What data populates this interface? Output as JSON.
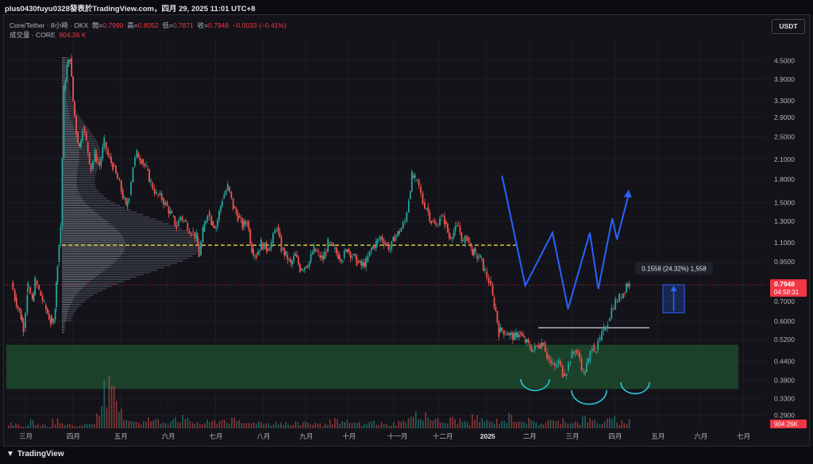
{
  "header": {
    "publisher": "plus0430fuyu0328發表於TradingView.com，四月 29, 2025 11:01 UTC+8"
  },
  "legend": {
    "symbol": "Core/Tether · 8小時 · OKX",
    "open_label": "開=",
    "open": "0.7990",
    "high_label": "高=",
    "high": "0.8052",
    "low_label": "低=",
    "low": "0.7871",
    "close_label": "收=",
    "close": "0.7948",
    "change": "−0.0033 (−0.41%)",
    "volume_label": "成交量 · CORE",
    "volume": "904.26 K"
  },
  "currency_button": "USDT",
  "footer": {
    "brand": "TradingView"
  },
  "colors": {
    "bull": "#26a69a",
    "bear": "#ef5350",
    "accent_blue": "#2962ff",
    "poc_line": "#ffeb3b",
    "support_zone": "#1e4a2e",
    "price_badge": "#f23645"
  },
  "chart_data": {
    "type": "candlestick",
    "scale": "log",
    "y_ticks": [
      "4.5000",
      "3.9000",
      "3.3000",
      "2.9000",
      "2.5000",
      "2.1000",
      "1.8000",
      "1.5000",
      "1.3000",
      "1.1000",
      "0.9500",
      "0.7000",
      "0.6000",
      "0.5200",
      "0.4400",
      "0.3800",
      "0.3300",
      "0.2900"
    ],
    "x_ticks": [
      "三月",
      "四月",
      "五月",
      "六月",
      "七月",
      "八月",
      "九月",
      "十月",
      "十一月",
      "十二月",
      "2025",
      "二月",
      "三月",
      "四月",
      "五月",
      "六月",
      "七月"
    ],
    "ylim": [
      0.27,
      5.0
    ],
    "last_price": "0.7948",
    "countdown": "04:58:31",
    "volume_badge": "904.26K",
    "measure_label": "0.1558 (24.32%) 1,558",
    "price_path": [
      [
        0.8,
        0.81
      ],
      [
        1.3,
        0.72
      ],
      [
        2.1,
        0.62
      ],
      [
        2.4,
        0.57
      ],
      [
        2.9,
        0.75
      ],
      [
        3.0,
        0.78
      ],
      [
        3.55,
        0.7
      ],
      [
        3.9,
        0.82
      ],
      [
        4.4,
        0.76
      ],
      [
        5.1,
        0.68
      ],
      [
        5.9,
        0.6
      ],
      [
        6.1,
        0.59
      ],
      [
        6.5,
        0.67
      ],
      [
        6.8,
        0.95
      ],
      [
        7.2,
        1.25
      ],
      [
        7.6,
        3.6
      ],
      [
        8.0,
        4.3
      ],
      [
        8.4,
        4.6
      ],
      [
        8.8,
        3.3
      ],
      [
        9.2,
        2.6
      ],
      [
        9.6,
        2.3
      ],
      [
        10.0,
        2.7
      ],
      [
        10.5,
        2.4
      ],
      [
        11.1,
        1.95
      ],
      [
        11.6,
        2.2
      ],
      [
        12.2,
        2.0
      ],
      [
        12.8,
        2.4
      ],
      [
        13.3,
        2.15
      ],
      [
        13.9,
        2.0
      ],
      [
        14.5,
        1.8
      ],
      [
        15.0,
        1.65
      ],
      [
        15.6,
        1.45
      ],
      [
        16.0,
        1.6
      ],
      [
        16.5,
        2.0
      ],
      [
        17.0,
        2.2
      ],
      [
        17.6,
        2.1
      ],
      [
        18.2,
        1.95
      ],
      [
        18.8,
        1.75
      ],
      [
        19.5,
        1.6
      ],
      [
        20.2,
        1.55
      ],
      [
        20.9,
        1.45
      ],
      [
        21.5,
        1.35
      ],
      [
        22.1,
        1.25
      ],
      [
        22.6,
        1.35
      ],
      [
        23.3,
        1.28
      ],
      [
        24.0,
        1.2
      ],
      [
        24.7,
        1.15
      ],
      [
        25.0,
        1.0
      ],
      [
        25.5,
        1.2
      ],
      [
        26.1,
        1.4
      ],
      [
        26.6,
        1.3
      ],
      [
        27.2,
        1.25
      ],
      [
        28.0,
        1.55
      ],
      [
        28.7,
        1.7
      ],
      [
        29.4,
        1.45
      ],
      [
        30.0,
        1.35
      ],
      [
        30.6,
        1.25
      ],
      [
        31.2,
        1.3
      ],
      [
        31.8,
        1.05
      ],
      [
        32.4,
        1.0
      ],
      [
        33.0,
        1.1
      ],
      [
        33.7,
        1.05
      ],
      [
        34.3,
        1.1
      ],
      [
        35.0,
        1.25
      ],
      [
        35.6,
        1.05
      ],
      [
        36.2,
        1.0
      ],
      [
        36.8,
        0.93
      ],
      [
        37.4,
        1.0
      ],
      [
        38.0,
        0.9
      ],
      [
        38.6,
        0.92
      ],
      [
        39.2,
        0.95
      ],
      [
        39.8,
        1.05
      ],
      [
        40.4,
        1.0
      ],
      [
        41.0,
        0.97
      ],
      [
        41.6,
        1.1
      ],
      [
        42.3,
        1.05
      ],
      [
        42.9,
        1.0
      ],
      [
        43.5,
        0.98
      ],
      [
        44.1,
        1.05
      ],
      [
        44.7,
        1.0
      ],
      [
        45.3,
        0.95
      ],
      [
        45.9,
        0.92
      ],
      [
        46.5,
        0.95
      ],
      [
        47.2,
        1.05
      ],
      [
        47.8,
        1.1
      ],
      [
        48.4,
        1.15
      ],
      [
        49.0,
        1.1
      ],
      [
        49.6,
        1.05
      ],
      [
        50.2,
        1.15
      ],
      [
        50.8,
        1.2
      ],
      [
        51.5,
        1.3
      ],
      [
        52.0,
        1.55
      ],
      [
        52.4,
        1.85
      ],
      [
        52.8,
        1.8
      ],
      [
        53.3,
        1.7
      ],
      [
        53.8,
        1.5
      ],
      [
        54.3,
        1.45
      ],
      [
        54.9,
        1.3
      ],
      [
        55.5,
        1.25
      ],
      [
        56.0,
        1.35
      ],
      [
        56.6,
        1.3
      ],
      [
        57.2,
        1.15
      ],
      [
        57.8,
        1.2
      ],
      [
        58.4,
        1.25
      ],
      [
        59.0,
        1.1
      ],
      [
        59.5,
        1.15
      ],
      [
        60.0,
        1.05
      ],
      [
        60.6,
        1.0
      ],
      [
        61.2,
        0.98
      ],
      [
        61.8,
        0.88
      ],
      [
        62.3,
        0.82
      ],
      [
        62.8,
        0.72
      ],
      [
        63.2,
        0.65
      ],
      [
        63.6,
        0.55
      ],
      [
        64.0,
        0.56
      ],
      [
        64.5,
        0.55
      ],
      [
        65.0,
        0.54
      ],
      [
        65.6,
        0.53
      ],
      [
        66.2,
        0.55
      ],
      [
        66.8,
        0.52
      ],
      [
        67.4,
        0.5
      ],
      [
        68.0,
        0.48
      ],
      [
        68.7,
        0.5
      ],
      [
        69.3,
        0.51
      ],
      [
        69.8,
        0.46
      ],
      [
        70.3,
        0.43
      ],
      [
        70.8,
        0.42
      ],
      [
        71.3,
        0.44
      ],
      [
        71.8,
        0.4
      ],
      [
        72.3,
        0.41
      ],
      [
        72.8,
        0.45
      ],
      [
        73.4,
        0.48
      ],
      [
        74.0,
        0.45
      ],
      [
        74.5,
        0.4
      ],
      [
        75.1,
        0.44
      ],
      [
        75.6,
        0.5
      ],
      [
        76.1,
        0.48
      ],
      [
        76.6,
        0.52
      ],
      [
        77.1,
        0.56
      ],
      [
        77.6,
        0.6
      ],
      [
        78.1,
        0.66
      ],
      [
        78.6,
        0.7
      ],
      [
        79.1,
        0.72
      ],
      [
        79.6,
        0.75
      ],
      [
        80.0,
        0.8
      ],
      [
        80.4,
        0.7948
      ]
    ],
    "volume_profile_note": "visible range volume profile on left",
    "horizontal_levels": {
      "poc": 1.08,
      "neckline": 0.57,
      "zone_top": 0.5,
      "zone_bottom": 0.355
    },
    "projection_path": [
      [
        64.0,
        1.85
      ],
      [
        67.0,
        0.79
      ],
      [
        70.5,
        1.19
      ],
      [
        72.5,
        0.66
      ],
      [
        75.3,
        1.19
      ],
      [
        76.4,
        0.77
      ],
      [
        78.2,
        1.33
      ],
      [
        78.8,
        1.13
      ],
      [
        80.3,
        1.6
      ]
    ],
    "measure_range": {
      "from": 0.64,
      "to": 0.7948
    },
    "volume_series": [
      4,
      3,
      2,
      5,
      3,
      2,
      6,
      4,
      3,
      2,
      3,
      4,
      20,
      30,
      25,
      12,
      8,
      6,
      5,
      7,
      6,
      5,
      9,
      8,
      6,
      5,
      4,
      5,
      6,
      7,
      6,
      5,
      4,
      6,
      5,
      4,
      5,
      4,
      3,
      4,
      5,
      4,
      3,
      5,
      6,
      4,
      5,
      4,
      3,
      5,
      4,
      3,
      4,
      5,
      8,
      10,
      12,
      9,
      6,
      5,
      7,
      6,
      5,
      8,
      7,
      5,
      6,
      7,
      9,
      8,
      6,
      5,
      4,
      6,
      5,
      7,
      6,
      5,
      8,
      6,
      5,
      6,
      7,
      5,
      6,
      4,
      3,
      4,
      3,
      2
    ],
    "bg_color": "#131319"
  }
}
